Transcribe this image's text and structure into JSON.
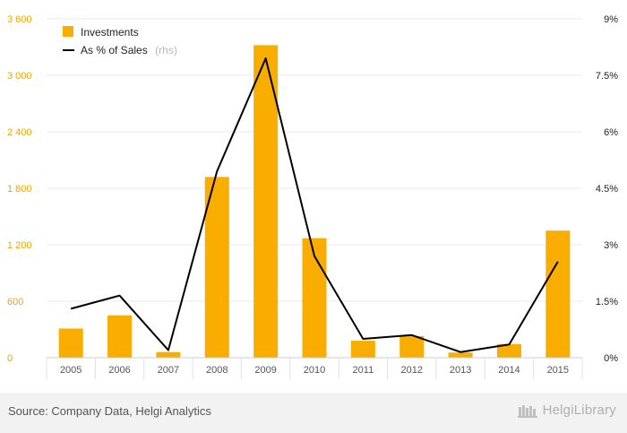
{
  "chart_data": {
    "type": "bar+line",
    "categories": [
      "2005",
      "2006",
      "2007",
      "2008",
      "2009",
      "2010",
      "2011",
      "2012",
      "2013",
      "2014",
      "2015"
    ],
    "series": [
      {
        "name": "Investments",
        "type": "bar",
        "axis": "left",
        "color": "#f9ad00",
        "values": [
          310,
          450,
          60,
          1920,
          3320,
          1270,
          180,
          230,
          55,
          145,
          1350
        ]
      },
      {
        "name": "As % of Sales",
        "name_suffix": "(rhs)",
        "type": "line",
        "axis": "right",
        "color": "#000000",
        "values": [
          1.3,
          1.65,
          0.2,
          4.95,
          7.95,
          2.7,
          0.5,
          0.6,
          0.15,
          0.35,
          2.55
        ]
      }
    ],
    "y_left": {
      "min": 0,
      "max": 3600,
      "ticks": [
        0,
        600,
        1200,
        1800,
        2400,
        3000,
        3600
      ],
      "tick_labels": [
        "0",
        "600",
        "1 200",
        "1 800",
        "2 400",
        "3 000",
        "3 600"
      ]
    },
    "y_right": {
      "min": 0,
      "max": 9,
      "ticks": [
        0,
        1.5,
        3,
        4.5,
        6,
        7.5,
        9
      ],
      "tick_labels": [
        "0%",
        "1.5%",
        "3%",
        "4.5%",
        "6%",
        "7.5%",
        "9%"
      ]
    },
    "grid": true,
    "legend_position": "top-left"
  },
  "footer": {
    "source": "Source: Company Data, Helgi Analytics",
    "brand": "HelgiLibrary"
  }
}
